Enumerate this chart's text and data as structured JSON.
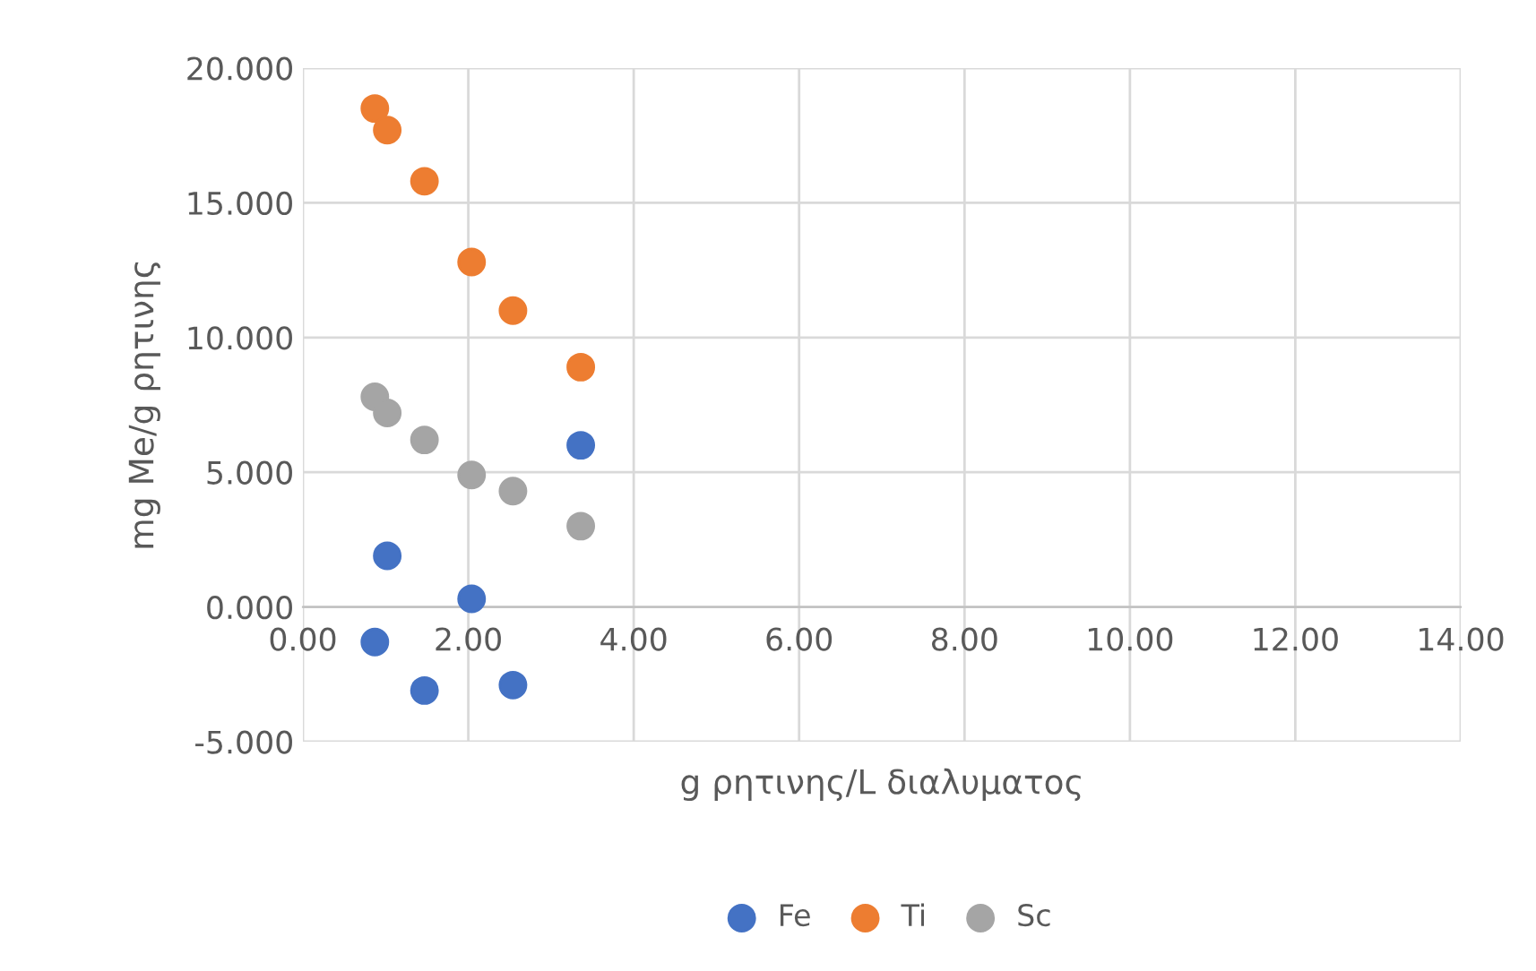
{
  "chart_data": {
    "type": "scatter",
    "xlabel": "g ρητινης/L διαλυματος",
    "ylabel": "mg Me/g ρητινης",
    "series": [
      {
        "name": "Fe",
        "color": "#4472c4",
        "x": [
          0.87,
          1.02,
          1.47,
          2.04,
          2.54,
          3.36
        ],
        "values": [
          -1.3,
          1.9,
          -3.1,
          0.3,
          -2.9,
          6.0
        ]
      },
      {
        "name": "Ti",
        "color": "#ed7d31",
        "x": [
          0.87,
          1.02,
          1.47,
          2.04,
          2.54,
          3.36
        ],
        "values": [
          18.5,
          17.7,
          15.8,
          12.8,
          11.0,
          8.9
        ]
      },
      {
        "name": "Sc",
        "color": "#a5a5a5",
        "x": [
          0.87,
          1.02,
          1.47,
          2.04,
          2.54,
          3.36
        ],
        "values": [
          7.8,
          7.2,
          6.2,
          4.9,
          4.3,
          3.0
        ]
      }
    ],
    "xlim": [
      0,
      14
    ],
    "xticks": [
      {
        "value": 0,
        "label": "0.00"
      },
      {
        "value": 2,
        "label": "2.00"
      },
      {
        "value": 4,
        "label": "4.00"
      },
      {
        "value": 6,
        "label": "6.00"
      },
      {
        "value": 8,
        "label": "8.00"
      },
      {
        "value": 10,
        "label": "10.00"
      },
      {
        "value": 12,
        "label": "12.00"
      },
      {
        "value": 14,
        "label": "14.00"
      }
    ],
    "ylim": [
      -5,
      20
    ],
    "yticks": [
      {
        "value": -5,
        "label": "-5.000"
      },
      {
        "value": 0,
        "label": "0.000"
      },
      {
        "value": 5,
        "label": "5.000"
      },
      {
        "value": 10,
        "label": "10.000"
      },
      {
        "value": 15,
        "label": "15.000"
      },
      {
        "value": 20,
        "label": "20.000"
      }
    ],
    "grid": true,
    "legend": "bottom",
    "marker": "circle"
  }
}
